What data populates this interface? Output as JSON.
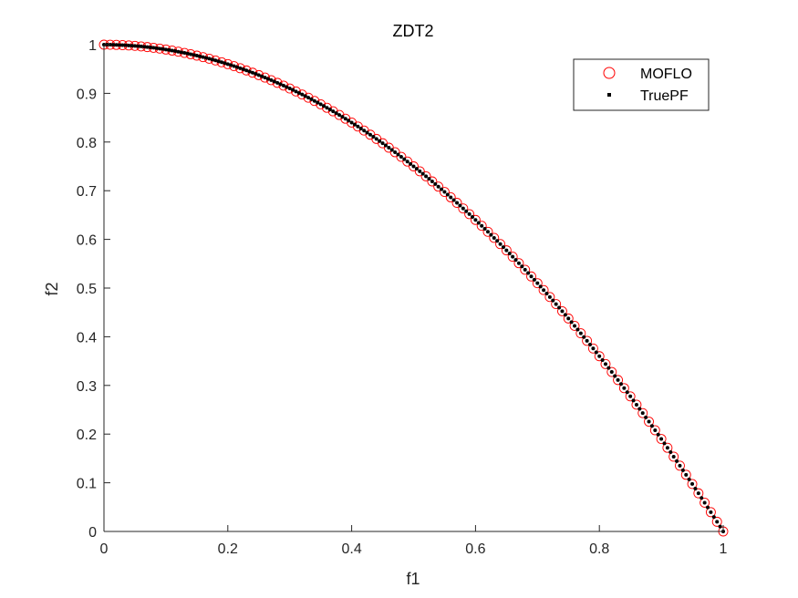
{
  "chart_data": {
    "type": "scatter",
    "title": "ZDT2",
    "xlabel": "f1",
    "ylabel": "f2",
    "xlim": [
      0,
      1
    ],
    "ylim": [
      0,
      1
    ],
    "xticks": [
      "0",
      "0.2",
      "0.4",
      "0.6",
      "0.8",
      "1"
    ],
    "yticks": [
      "0",
      "0.1",
      "0.2",
      "0.3",
      "0.4",
      "0.5",
      "0.6",
      "0.7",
      "0.8",
      "0.9",
      "1"
    ],
    "grid": false,
    "legend_position": "top-right",
    "series": [
      {
        "name": "MOFLO",
        "marker": "circle-open",
        "color": "#ff0000",
        "x": [
          0.0,
          0.01,
          0.02,
          0.03,
          0.04,
          0.05,
          0.06,
          0.07,
          0.08,
          0.09,
          0.1,
          0.11,
          0.12,
          0.13,
          0.14,
          0.15,
          0.16,
          0.17,
          0.18,
          0.19,
          0.2,
          0.21,
          0.22,
          0.23,
          0.24,
          0.25,
          0.26,
          0.27,
          0.28,
          0.29,
          0.3,
          0.31,
          0.32,
          0.33,
          0.34,
          0.35,
          0.36,
          0.37,
          0.38,
          0.39,
          0.4,
          0.41,
          0.42,
          0.43,
          0.44,
          0.45,
          0.46,
          0.47,
          0.48,
          0.49,
          0.5,
          0.51,
          0.52,
          0.53,
          0.54,
          0.55,
          0.56,
          0.57,
          0.58,
          0.59,
          0.6,
          0.61,
          0.62,
          0.63,
          0.64,
          0.65,
          0.66,
          0.67,
          0.68,
          0.69,
          0.7,
          0.71,
          0.72,
          0.73,
          0.74,
          0.75,
          0.76,
          0.77,
          0.78,
          0.79,
          0.8,
          0.81,
          0.82,
          0.83,
          0.84,
          0.85,
          0.86,
          0.87,
          0.88,
          0.89,
          0.9,
          0.91,
          0.92,
          0.93,
          0.94,
          0.95,
          0.96,
          0.97,
          0.98,
          0.99,
          1.0
        ],
        "y": [
          1.0,
          0.9999,
          0.9996,
          0.9991,
          0.9984,
          0.9975,
          0.9964,
          0.9951,
          0.9936,
          0.9919,
          0.99,
          0.9879,
          0.9856,
          0.9831,
          0.9804,
          0.9775,
          0.9744,
          0.9711,
          0.9676,
          0.9639,
          0.96,
          0.9559,
          0.9516,
          0.9471,
          0.9424,
          0.9375,
          0.9324,
          0.9271,
          0.9216,
          0.9159,
          0.91,
          0.9039,
          0.8976,
          0.8911,
          0.8844,
          0.8775,
          0.8704,
          0.8631,
          0.8556,
          0.8479,
          0.84,
          0.8319,
          0.8236,
          0.8151,
          0.8064,
          0.7975,
          0.7884,
          0.7791,
          0.7696,
          0.7599,
          0.75,
          0.7399,
          0.7296,
          0.7191,
          0.7084,
          0.6975,
          0.6864,
          0.6751,
          0.6636,
          0.6519,
          0.64,
          0.6279,
          0.6156,
          0.6031,
          0.5904,
          0.5775,
          0.5644,
          0.5511,
          0.5376,
          0.5239,
          0.51,
          0.4959,
          0.4816,
          0.4671,
          0.4524,
          0.4375,
          0.4224,
          0.4071,
          0.3916,
          0.3759,
          0.36,
          0.3439,
          0.3276,
          0.3111,
          0.2944,
          0.2775,
          0.2604,
          0.2431,
          0.2256,
          0.2079,
          0.19,
          0.1719,
          0.1536,
          0.1351,
          0.1164,
          0.0975,
          0.0784,
          0.0591,
          0.0396,
          0.0199,
          0.0
        ]
      },
      {
        "name": "TruePF",
        "marker": "dot",
        "color": "#000000",
        "x": [
          0.0,
          0.005,
          0.01,
          0.015,
          0.02,
          0.025,
          0.03,
          0.035,
          0.04,
          0.045,
          0.05,
          0.055,
          0.06,
          0.065,
          0.07,
          0.075,
          0.08,
          0.085,
          0.09,
          0.095,
          0.1,
          0.105,
          0.11,
          0.115,
          0.12,
          0.125,
          0.13,
          0.135,
          0.14,
          0.145,
          0.15,
          0.155,
          0.16,
          0.165,
          0.17,
          0.175,
          0.18,
          0.185,
          0.19,
          0.195,
          0.2,
          0.205,
          0.21,
          0.215,
          0.22,
          0.225,
          0.23,
          0.235,
          0.24,
          0.245,
          0.25,
          0.255,
          0.26,
          0.265,
          0.27,
          0.275,
          0.28,
          0.285,
          0.29,
          0.295,
          0.3,
          0.305,
          0.31,
          0.315,
          0.32,
          0.325,
          0.33,
          0.335,
          0.34,
          0.345,
          0.35,
          0.355,
          0.36,
          0.365,
          0.37,
          0.375,
          0.38,
          0.385,
          0.39,
          0.395,
          0.4,
          0.405,
          0.41,
          0.415,
          0.42,
          0.425,
          0.43,
          0.435,
          0.44,
          0.445,
          0.45,
          0.455,
          0.46,
          0.465,
          0.47,
          0.475,
          0.48,
          0.485,
          0.49,
          0.495,
          0.5,
          0.505,
          0.51,
          0.515,
          0.52,
          0.525,
          0.53,
          0.535,
          0.54,
          0.545,
          0.55,
          0.555,
          0.56,
          0.565,
          0.57,
          0.575,
          0.58,
          0.585,
          0.59,
          0.595,
          0.6,
          0.605,
          0.61,
          0.615,
          0.62,
          0.625,
          0.63,
          0.635,
          0.64,
          0.645,
          0.65,
          0.655,
          0.66,
          0.665,
          0.67,
          0.675,
          0.68,
          0.685,
          0.69,
          0.695,
          0.7,
          0.705,
          0.71,
          0.715,
          0.72,
          0.725,
          0.73,
          0.735,
          0.74,
          0.745,
          0.75,
          0.755,
          0.76,
          0.765,
          0.77,
          0.775,
          0.78,
          0.785,
          0.79,
          0.795,
          0.8,
          0.805,
          0.81,
          0.815,
          0.82,
          0.825,
          0.83,
          0.835,
          0.84,
          0.845,
          0.85,
          0.855,
          0.86,
          0.865,
          0.87,
          0.875,
          0.88,
          0.885,
          0.89,
          0.895,
          0.9,
          0.905,
          0.91,
          0.915,
          0.92,
          0.925,
          0.93,
          0.935,
          0.94,
          0.945,
          0.95,
          0.955,
          0.96,
          0.965,
          0.97,
          0.975,
          0.98,
          0.985,
          0.99,
          0.995,
          1.0
        ],
        "y": [
          1.0,
          1.0,
          0.9999,
          0.9998,
          0.9996,
          0.9994,
          0.9991,
          0.9988,
          0.9984,
          0.998,
          0.9975,
          0.997,
          0.9964,
          0.9958,
          0.9951,
          0.9944,
          0.9936,
          0.9928,
          0.9919,
          0.991,
          0.99,
          0.989,
          0.9879,
          0.9868,
          0.9856,
          0.9844,
          0.9831,
          0.9818,
          0.9804,
          0.979,
          0.9775,
          0.976,
          0.9744,
          0.9728,
          0.9711,
          0.9694,
          0.9676,
          0.9658,
          0.9639,
          0.962,
          0.96,
          0.958,
          0.9559,
          0.9538,
          0.9516,
          0.9494,
          0.9471,
          0.9448,
          0.9424,
          0.94,
          0.9375,
          0.935,
          0.9324,
          0.9298,
          0.9271,
          0.9244,
          0.9216,
          0.9188,
          0.9159,
          0.913,
          0.91,
          0.907,
          0.9039,
          0.9008,
          0.8976,
          0.8944,
          0.8911,
          0.8878,
          0.8844,
          0.881,
          0.8775,
          0.874,
          0.8704,
          0.8668,
          0.8631,
          0.8594,
          0.8556,
          0.8518,
          0.8479,
          0.844,
          0.84,
          0.836,
          0.8319,
          0.8278,
          0.8236,
          0.8194,
          0.8151,
          0.8108,
          0.8064,
          0.802,
          0.7975,
          0.793,
          0.7884,
          0.7838,
          0.7791,
          0.7744,
          0.7696,
          0.7648,
          0.7599,
          0.755,
          0.75,
          0.745,
          0.7399,
          0.7348,
          0.7296,
          0.7244,
          0.7191,
          0.7138,
          0.7084,
          0.703,
          0.6975,
          0.692,
          0.6864,
          0.6808,
          0.6751,
          0.6694,
          0.6636,
          0.6578,
          0.6519,
          0.646,
          0.64,
          0.634,
          0.6279,
          0.6218,
          0.6156,
          0.6094,
          0.6031,
          0.5968,
          0.5904,
          0.584,
          0.5775,
          0.571,
          0.5644,
          0.5578,
          0.5511,
          0.5444,
          0.5376,
          0.5308,
          0.5239,
          0.517,
          0.51,
          0.503,
          0.4959,
          0.4888,
          0.4816,
          0.4744,
          0.4671,
          0.4598,
          0.4524,
          0.445,
          0.4375,
          0.43,
          0.4224,
          0.4148,
          0.4071,
          0.3994,
          0.3916,
          0.3838,
          0.3759,
          0.368,
          0.36,
          0.352,
          0.3439,
          0.3358,
          0.3276,
          0.3194,
          0.3111,
          0.3028,
          0.2944,
          0.286,
          0.2775,
          0.269,
          0.2604,
          0.2518,
          0.2431,
          0.2344,
          0.2256,
          0.2168,
          0.2079,
          0.199,
          0.19,
          0.181,
          0.1719,
          0.1628,
          0.1536,
          0.1444,
          0.1351,
          0.1258,
          0.1164,
          0.107,
          0.0975,
          0.088,
          0.0784,
          0.0688,
          0.0591,
          0.0494,
          0.0396,
          0.0298,
          0.0199,
          0.01,
          0.0
        ]
      }
    ]
  }
}
